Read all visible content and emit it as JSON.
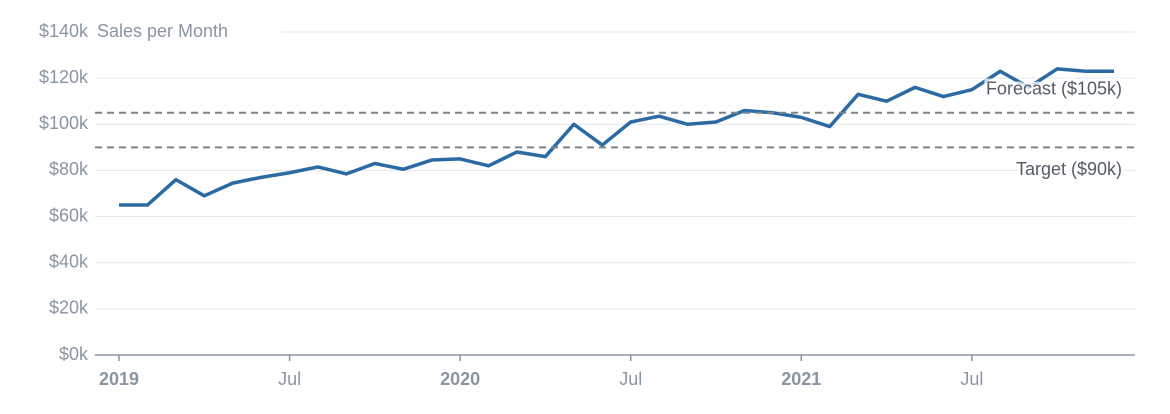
{
  "chart_data": {
    "type": "line",
    "title": "Sales per Month",
    "x": [
      "2019-01",
      "2019-02",
      "2019-03",
      "2019-04",
      "2019-05",
      "2019-06",
      "2019-07",
      "2019-08",
      "2019-09",
      "2019-10",
      "2019-11",
      "2019-12",
      "2020-01",
      "2020-02",
      "2020-03",
      "2020-04",
      "2020-05",
      "2020-06",
      "2020-07",
      "2020-08",
      "2020-09",
      "2020-10",
      "2020-11",
      "2020-12",
      "2021-01",
      "2021-02",
      "2021-03",
      "2021-04",
      "2021-05",
      "2021-06",
      "2021-07",
      "2021-08",
      "2021-09",
      "2021-10",
      "2021-11",
      "2021-12"
    ],
    "series": [
      {
        "name": "Sales",
        "color": "#2b6aa3",
        "values": [
          65,
          65,
          76,
          69,
          74.5,
          77,
          79,
          81.5,
          78.5,
          83,
          80.5,
          84.5,
          85,
          82,
          88,
          86,
          100,
          91,
          101,
          103.5,
          100,
          101,
          106,
          105,
          103,
          99,
          113,
          110,
          116,
          112,
          115,
          123,
          116,
          124,
          123,
          123
        ]
      }
    ],
    "xlim": [
      "2019-01",
      "2021-12"
    ],
    "xticks": [
      {
        "value": "2019-01",
        "label": "2019"
      },
      {
        "value": "2019-07",
        "label": "Jul"
      },
      {
        "value": "2020-01",
        "label": "2020"
      },
      {
        "value": "2020-07",
        "label": "Jul"
      },
      {
        "value": "2021-01",
        "label": "2021"
      },
      {
        "value": "2021-07",
        "label": "Jul"
      }
    ],
    "ylim": [
      0,
      140
    ],
    "yticks": [
      {
        "value": 0,
        "label": "$0k"
      },
      {
        "value": 20,
        "label": "$20k"
      },
      {
        "value": 40,
        "label": "$40k"
      },
      {
        "value": 60,
        "label": "$60k"
      },
      {
        "value": 80,
        "label": "$80k"
      },
      {
        "value": 100,
        "label": "$100k"
      },
      {
        "value": 120,
        "label": "$120k"
      },
      {
        "value": 140,
        "label": "$140k"
      }
    ],
    "reference_lines": [
      {
        "value": 105,
        "label": "Forecast ($105k)"
      },
      {
        "value": 90,
        "label": "Target ($90k)"
      }
    ],
    "grid": true
  }
}
